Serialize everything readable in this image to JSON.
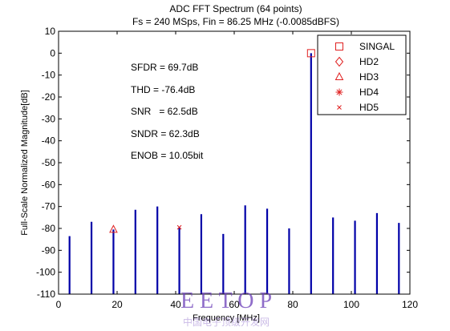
{
  "chart_data": {
    "type": "bar",
    "title": "ADC FFT Spectrum (64 points)",
    "subtitle": "Fs = 240 MSps, Fin = 86.25 MHz (-0.0085dBFS)",
    "xlabel": "Frequency [MHz]",
    "ylabel": "Full-Scale Normalized Magnitude[dB]",
    "xlim": [
      0,
      120
    ],
    "ylim": [
      -110,
      10
    ],
    "xticks": [
      0,
      20,
      40,
      60,
      80,
      100,
      120
    ],
    "yticks": [
      10,
      0,
      -10,
      -20,
      -30,
      -40,
      -50,
      -60,
      -70,
      -80,
      -90,
      -100,
      -110
    ],
    "grid": false,
    "baseline": -110,
    "bar_color": "#0000a8",
    "spectrum": {
      "x": [
        3.75,
        11.25,
        18.75,
        26.25,
        33.75,
        41.25,
        48.75,
        56.25,
        63.75,
        71.25,
        78.75,
        86.25,
        93.75,
        101.25,
        108.75,
        116.25
      ],
      "y": [
        -83.5,
        -77,
        -80.5,
        -71.5,
        -70,
        -79.5,
        -73.5,
        -82.5,
        -69.5,
        -71,
        -80,
        -0.0085,
        -75,
        -76.5,
        -73,
        -77.5
      ]
    },
    "markers": [
      {
        "name": "SINGAL",
        "symbol": "square",
        "x": 86.25,
        "y": -0.0085,
        "color": "#e02020"
      },
      {
        "name": "HD2",
        "symbol": "diamond",
        "x": null,
        "y": null,
        "color": "#e02020"
      },
      {
        "name": "HD3",
        "symbol": "triangle",
        "x": 18.75,
        "y": -80.5,
        "color": "#e02020"
      },
      {
        "name": "HD4",
        "symbol": "asterisk",
        "x": null,
        "y": null,
        "color": "#e02020"
      },
      {
        "name": "HD5",
        "symbol": "x",
        "x": 41.25,
        "y": -79.5,
        "color": "#e02020"
      }
    ],
    "annotations": [
      "SFDR = 69.7dB",
      "THD = -76.4dB",
      "SNR   = 62.5dB",
      "SNDR = 62.3dB",
      "ENOB = 10.05bit"
    ],
    "legend_position": "top-right"
  },
  "watermark": {
    "text": "E E T O P",
    "subtext": "中国电子顶级开发网"
  }
}
